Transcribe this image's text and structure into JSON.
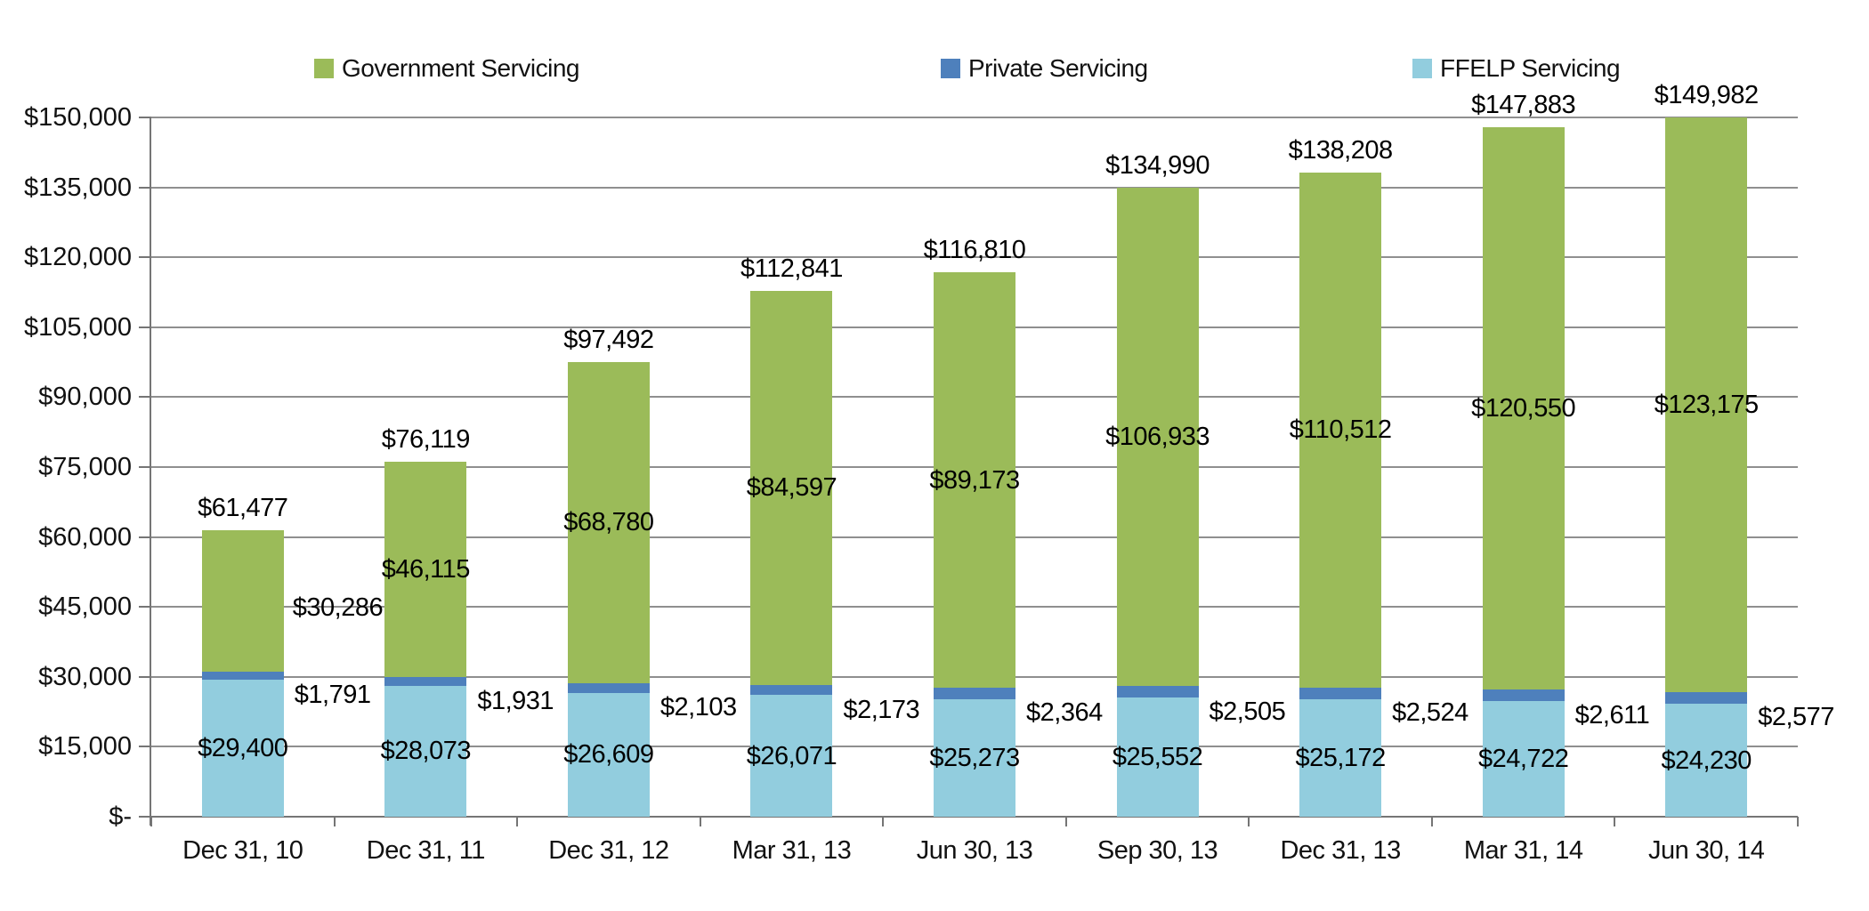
{
  "chart_data": {
    "type": "bar",
    "stacked": true,
    "title": "",
    "xlabel": "",
    "ylabel": "",
    "ylim": [
      0,
      150000
    ],
    "ytick_step": 15000,
    "grid": true,
    "legend_position": "top",
    "categories": [
      "Dec 31, 10",
      "Dec 31, 11",
      "Dec 31, 12",
      "Mar 31, 13",
      "Jun 30, 13",
      "Sep 30, 13",
      "Dec 31, 13",
      "Mar 31, 14",
      "Jun 30, 14"
    ],
    "series": [
      {
        "name": "FFELP Servicing",
        "color": "#92CDDE",
        "values": [
          29400,
          28073,
          26609,
          26071,
          25273,
          25552,
          25172,
          24722,
          24230
        ]
      },
      {
        "name": "Private Servicing",
        "color": "#4E80BC",
        "values": [
          1791,
          1931,
          2103,
          2173,
          2364,
          2505,
          2524,
          2611,
          2577
        ]
      },
      {
        "name": "Government Servicing",
        "color": "#9BBB59",
        "values": [
          30286,
          46115,
          68780,
          84597,
          89173,
          106933,
          110512,
          120550,
          123175
        ]
      }
    ],
    "totals": [
      61477,
      76119,
      97492,
      112841,
      116810,
      134990,
      138208,
      147883,
      149982
    ],
    "ytick_labels": [
      "$-",
      "$15,000",
      "$30,000",
      "$45,000",
      "$60,000",
      "$75,000",
      "$90,000",
      "$105,000",
      "$120,000",
      "$135,000",
      "$150,000"
    ]
  },
  "labels": {
    "totals": [
      "$61,477",
      "$76,119",
      "$97,492",
      "$112,841",
      "$116,810",
      "$134,990",
      "$138,208",
      "$147,883",
      "$149,982"
    ],
    "government": [
      "$30,286",
      "$46,115",
      "$68,780",
      "$84,597",
      "$89,173",
      "$106,933",
      "$110,512",
      "$120,550",
      "$123,175"
    ],
    "private": [
      "$1,791",
      "$1,931",
      "$2,103",
      "$2,173",
      "$2,364",
      "$2,505",
      "$2,524",
      "$2,611",
      "$2,577"
    ],
    "ffelp": [
      "$29,400",
      "$28,073",
      "$26,609",
      "$26,071",
      "$25,273",
      "$25,552",
      "$25,172",
      "$24,722",
      "$24,230"
    ]
  },
  "colors": {
    "gridline": "#8F8F8F",
    "axis": "#757575",
    "label_text": "#000000"
  }
}
